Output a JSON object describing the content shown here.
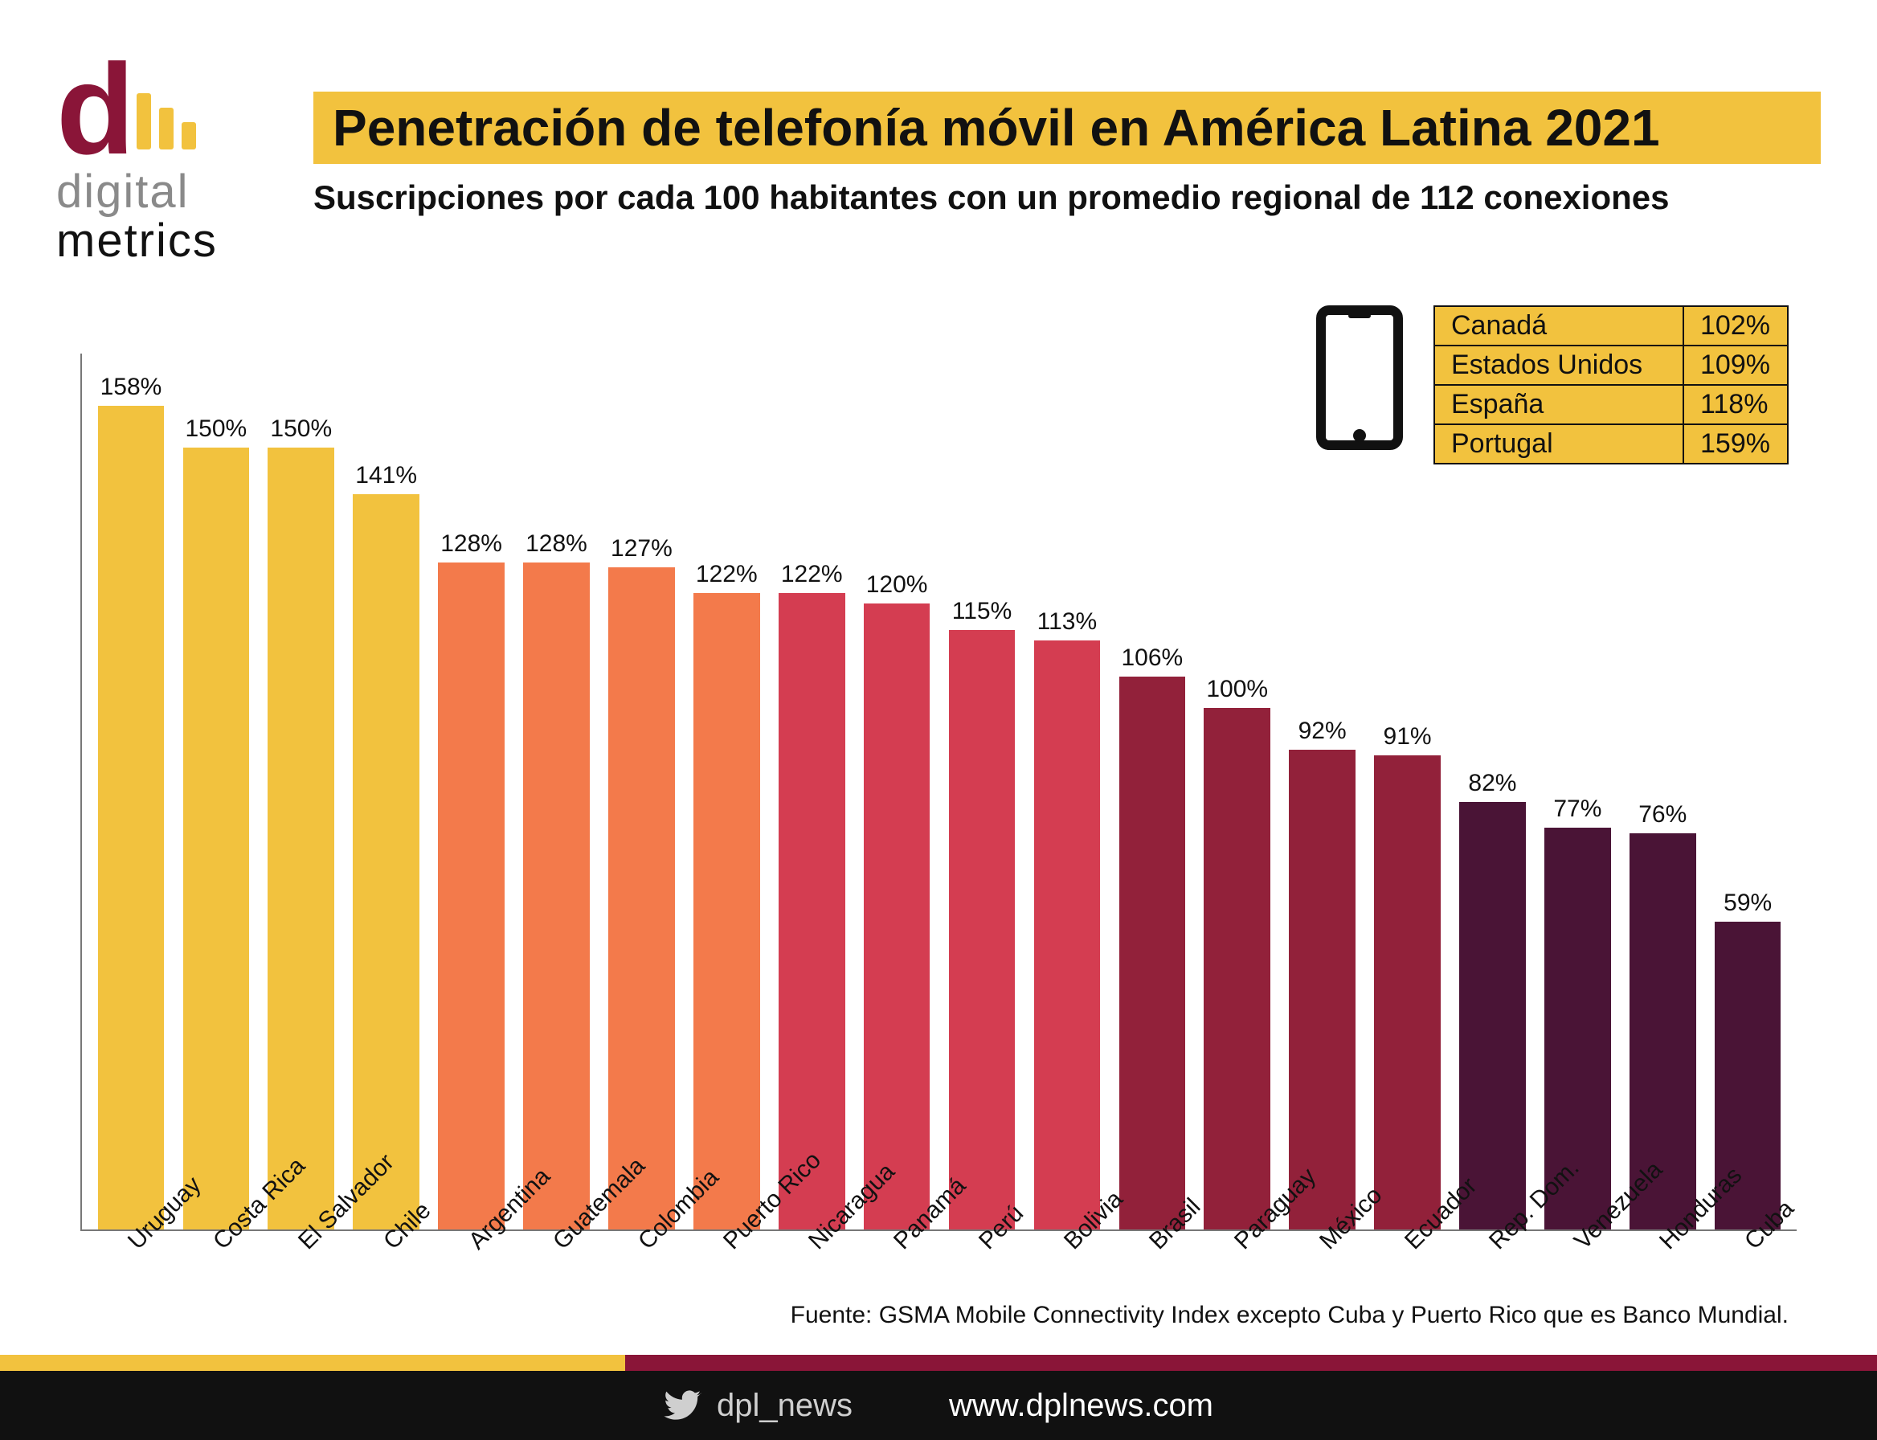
{
  "logo": {
    "word1": "digital",
    "word2": "metrics",
    "bar_heights": [
      70,
      52,
      34
    ]
  },
  "title": "Penetración de telefonía móvil en América Latina 2021",
  "subtitle": "Suscripciones por cada 100 habitantes con un promedio regional de 112 conexiones",
  "chart": {
    "type": "bar",
    "ymax": 168,
    "value_suffix": "%",
    "bar_width_pct": 78,
    "value_fontsize": 30,
    "label_fontsize": 30,
    "axis_color": "#777777",
    "background": "#ffffff",
    "categories": [
      "Uruguay",
      "Costa Rica",
      "El Salvador",
      "Chile",
      "Argentina",
      "Guatemala",
      "Colombia",
      "Puerto Rico",
      "Nicaragua",
      "Panamá",
      "Perú",
      "Bolivia",
      "Brasil",
      "Paraguay",
      "México",
      "Ecuador",
      "Rep. Dom.",
      "Venezuela",
      "Honduras",
      "Cuba"
    ],
    "values": [
      158,
      150,
      150,
      141,
      128,
      128,
      127,
      122,
      122,
      120,
      115,
      113,
      106,
      100,
      92,
      91,
      82,
      77,
      76,
      59
    ],
    "colors": [
      "#f2c23e",
      "#f2c23e",
      "#f2c23e",
      "#f2c23e",
      "#f37a4b",
      "#f37a4b",
      "#f37a4b",
      "#f37a4b",
      "#d43d51",
      "#d43d51",
      "#d43d51",
      "#d43d51",
      "#92213a",
      "#92213a",
      "#92213a",
      "#92213a",
      "#4a1436",
      "#4a1436",
      "#4a1436",
      "#4a1436"
    ]
  },
  "reference_table": {
    "cell_bg": "#f2c23e",
    "border_color": "#111111",
    "fontsize": 34,
    "rows": [
      {
        "label": "Canadá",
        "value": "102%"
      },
      {
        "label": "Estados Unidos",
        "value": "109%"
      },
      {
        "label": "España",
        "value": "118%"
      },
      {
        "label": "Portugal",
        "value": "159%"
      }
    ]
  },
  "source": "Fuente: GSMA Mobile Connectivity Index excepto Cuba y Puerto Rico que es Banco Mundial.",
  "footer": {
    "twitter": "dpl_news",
    "url": "www.dplnews.com"
  },
  "palette": {
    "gold": "#f2c23e",
    "maroon": "#8a1538",
    "black": "#111111"
  }
}
